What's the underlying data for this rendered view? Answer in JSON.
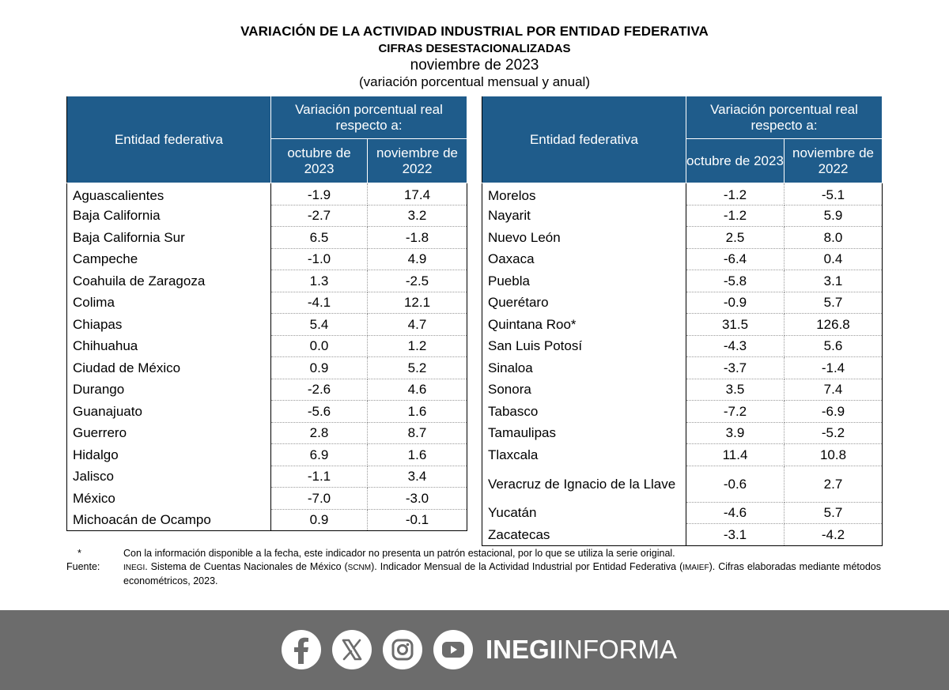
{
  "titles": {
    "main": "VARIACIÓN DE LA ACTIVIDAD INDUSTRIAL POR ENTIDAD FEDERATIVA",
    "sub": "CIFRAS DESESTACIONALIZADAS",
    "period": "noviembre de 2023",
    "note": "(variación porcentual mensual y anual)"
  },
  "table_headers": {
    "entity": "Entidad federativa",
    "variation": "Variación porcentual real respecto a:",
    "col1": "octubre de 2023",
    "col2": "noviembre de 2022"
  },
  "left_rows": [
    {
      "name": "Aguascalientes",
      "oct": "-1.9",
      "nov": "17.4"
    },
    {
      "name": "Baja California",
      "oct": "-2.7",
      "nov": "3.2"
    },
    {
      "name": "Baja California Sur",
      "oct": "6.5",
      "nov": "-1.8"
    },
    {
      "name": "Campeche",
      "oct": "-1.0",
      "nov": "4.9"
    },
    {
      "name": "Coahuila de Zaragoza",
      "oct": "1.3",
      "nov": "-2.5"
    },
    {
      "name": "Colima",
      "oct": "-4.1",
      "nov": "12.1"
    },
    {
      "name": "Chiapas",
      "oct": "5.4",
      "nov": "4.7"
    },
    {
      "name": "Chihuahua",
      "oct": "0.0",
      "nov": "1.2"
    },
    {
      "name": "Ciudad de México",
      "oct": "0.9",
      "nov": "5.2"
    },
    {
      "name": "Durango",
      "oct": "-2.6",
      "nov": "4.6"
    },
    {
      "name": "Guanajuato",
      "oct": "-5.6",
      "nov": "1.6"
    },
    {
      "name": "Guerrero",
      "oct": "2.8",
      "nov": "8.7"
    },
    {
      "name": "Hidalgo",
      "oct": "6.9",
      "nov": "1.6"
    },
    {
      "name": "Jalisco",
      "oct": "-1.1",
      "nov": "3.4"
    },
    {
      "name": "México",
      "oct": "-7.0",
      "nov": "-3.0"
    },
    {
      "name": "Michoacán de Ocampo",
      "oct": "0.9",
      "nov": "-0.1"
    }
  ],
  "right_rows": [
    {
      "name": "Morelos",
      "oct": "-1.2",
      "nov": "-5.1"
    },
    {
      "name": "Nayarit",
      "oct": "-1.2",
      "nov": "5.9"
    },
    {
      "name": "Nuevo León",
      "oct": "2.5",
      "nov": "8.0"
    },
    {
      "name": "Oaxaca",
      "oct": "-6.4",
      "nov": "0.4"
    },
    {
      "name": "Puebla",
      "oct": "-5.8",
      "nov": "3.1"
    },
    {
      "name": "Querétaro",
      "oct": "-0.9",
      "nov": "5.7"
    },
    {
      "name": "Quintana Roo*",
      "oct": "31.5",
      "nov": "126.8"
    },
    {
      "name": "San Luis Potosí",
      "oct": "-4.3",
      "nov": "5.6"
    },
    {
      "name": "Sinaloa",
      "oct": "-3.7",
      "nov": "-1.4"
    },
    {
      "name": "Sonora",
      "oct": "3.5",
      "nov": "7.4"
    },
    {
      "name": "Tabasco",
      "oct": "-7.2",
      "nov": "-6.9"
    },
    {
      "name": "Tamaulipas",
      "oct": "3.9",
      "nov": "-5.2"
    },
    {
      "name": "Tlaxcala",
      "oct": "11.4",
      "nov": "10.8"
    },
    {
      "name": "Veracruz de Ignacio de la Llave",
      "oct": "-0.6",
      "nov": "2.7"
    },
    {
      "name": "Yucatán",
      "oct": "-4.6",
      "nov": "5.7"
    },
    {
      "name": "Zacatecas",
      "oct": "-3.1",
      "nov": "-4.2"
    }
  ],
  "notes": {
    "star_key": "*",
    "star_text": "Con la información disponible a la fecha, este indicador no presenta un patrón estacional, por lo que se utiliza la serie original.",
    "source_key": "Fuente:",
    "source_org": "INEGI",
    "source_text_1": ". Sistema de Cuentas Nacionales de México (",
    "source_abbr_1": "SCNM",
    "source_text_2": "). Indicador Mensual de la Actividad Industrial por Entidad Federativa (",
    "source_abbr_2": "IMAIEF",
    "source_text_3": "). Cifras elaboradas mediante métodos econométricos, 2023."
  },
  "footer": {
    "brand_bold": "INEGI",
    "brand_light": "INFORMA",
    "bg_color": "#6c6c6c",
    "header_color": "#1f5c8b",
    "icons": [
      "facebook-icon",
      "x-icon",
      "instagram-icon",
      "youtube-icon"
    ]
  }
}
